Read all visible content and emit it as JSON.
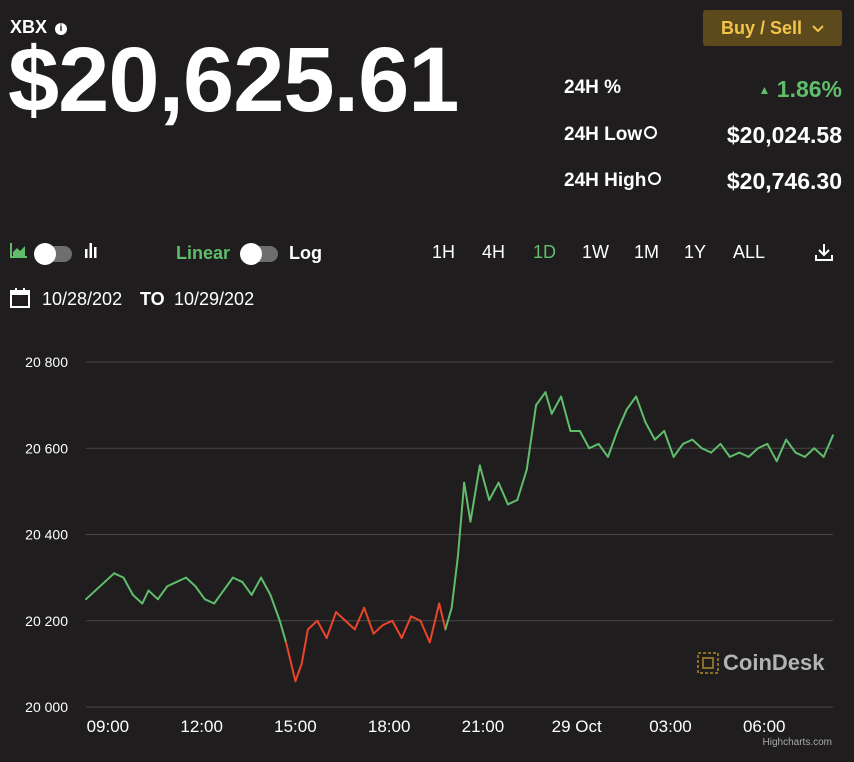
{
  "header": {
    "ticker": "XBX",
    "info_icon": "i",
    "price": "$20,625.61",
    "buy_sell_label": "Buy / Sell",
    "buy_sell_color": "#f3c44a"
  },
  "stats": {
    "change_label": "24H %",
    "change_value": "1.86%",
    "change_arrow": "▲",
    "low_label": "24H Low",
    "low_value": "$20,024.58",
    "high_label": "24H High",
    "high_value": "$20,746.30"
  },
  "controls": {
    "linear_label": "Linear",
    "log_label": "Log",
    "ranges": [
      "1H",
      "4H",
      "1D",
      "1W",
      "1M",
      "1Y",
      "ALL"
    ],
    "active_range": "1D",
    "date_from": "10/28/202",
    "date_to_label": "TO",
    "date_to": "10/29/202"
  },
  "branding": {
    "logo_text": "CoinDesk",
    "credit": "Highcharts.com"
  },
  "colors": {
    "up": "#5fbd6b",
    "down": "#e8462a",
    "background": "#1f1d1e"
  },
  "chart_data": {
    "type": "line",
    "ylim": [
      20000,
      20800
    ],
    "y_ticks": [
      "20 000",
      "20 200",
      "20 400",
      "20 600",
      "20 800"
    ],
    "y_tick_values": [
      20000,
      20200,
      20400,
      20600,
      20800
    ],
    "x_ticks": [
      "09:00",
      "12:00",
      "15:00",
      "18:00",
      "21:00",
      "29 Oct",
      "03:00",
      "06:00"
    ],
    "x_tick_hours": [
      9,
      12,
      15,
      18,
      21,
      24,
      27,
      30
    ],
    "xlim_hours": [
      8.3,
      32.2
    ],
    "series": [
      {
        "x": [
          8.3,
          8.6,
          8.9,
          9.2,
          9.5,
          9.8,
          10.1,
          10.3,
          10.6,
          10.9,
          11.2,
          11.5,
          11.8,
          12.1,
          12.4,
          12.7,
          13.0,
          13.3,
          13.6,
          13.9,
          14.2,
          14.5,
          14.7,
          15.0,
          15.2,
          15.4,
          15.7,
          16.0,
          16.3,
          16.6,
          16.9,
          17.2,
          17.5,
          17.8,
          18.1,
          18.4,
          18.7,
          19.0,
          19.3,
          19.6,
          19.8,
          20.0,
          20.2,
          20.4,
          20.6,
          20.9,
          21.2,
          21.5,
          21.8,
          22.1,
          22.4,
          22.7,
          23.0,
          23.2,
          23.5,
          23.8,
          24.1,
          24.4,
          24.7,
          25.0,
          25.3,
          25.6,
          25.9,
          26.2,
          26.5,
          26.8,
          27.1,
          27.4,
          27.7,
          28.0,
          28.3,
          28.6,
          28.9,
          29.2,
          29.5,
          29.8,
          30.1,
          30.4,
          30.7,
          31.0,
          31.3,
          31.6,
          31.9,
          32.2
        ],
        "values": [
          20250,
          20270,
          20290,
          20310,
          20300,
          20260,
          20240,
          20270,
          20250,
          20280,
          20290,
          20300,
          20280,
          20250,
          20240,
          20270,
          20300,
          20290,
          20260,
          20300,
          20260,
          20200,
          20150,
          20060,
          20100,
          20180,
          20200,
          20160,
          20220,
          20200,
          20180,
          20230,
          20170,
          20190,
          20200,
          20160,
          20210,
          20200,
          20150,
          20240,
          20180,
          20230,
          20350,
          20520,
          20430,
          20560,
          20480,
          20520,
          20470,
          20480,
          20550,
          20700,
          20730,
          20680,
          20720,
          20640,
          20640,
          20600,
          20610,
          20580,
          20640,
          20690,
          20720,
          20660,
          20620,
          20640,
          20580,
          20610,
          20620,
          20600,
          20590,
          20610,
          20580,
          20590,
          20580,
          20600,
          20610,
          20570,
          20620,
          20590,
          20580,
          20600,
          20580,
          20630
        ],
        "down_range_hours": [
          14.7,
          19.8
        ]
      }
    ]
  }
}
